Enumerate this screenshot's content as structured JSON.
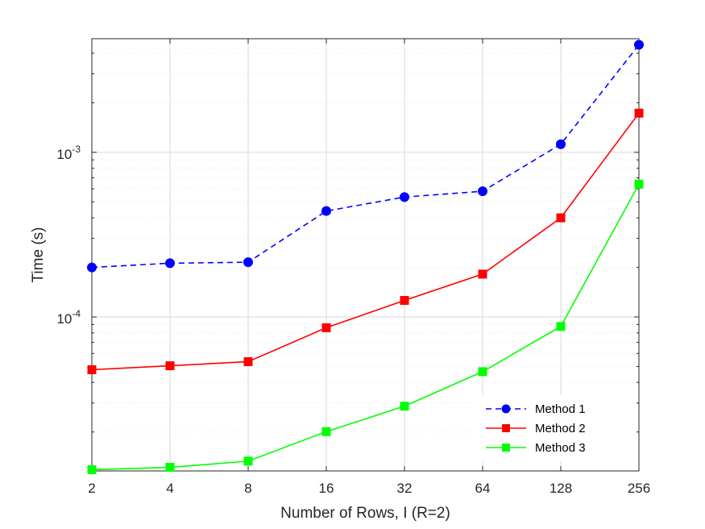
{
  "chart_data": {
    "type": "line",
    "xlabel": "Number of Rows, I (R=2)",
    "ylabel": "Time (s)",
    "x_scale": "log2",
    "y_scale": "log10",
    "x": [
      2,
      4,
      8,
      16,
      32,
      64,
      128,
      256
    ],
    "x_tick_labels": [
      "2",
      "4",
      "8",
      "16",
      "32",
      "64",
      "128",
      "256"
    ],
    "xlim": [
      2,
      256
    ],
    "ylim": [
      1.16e-05,
      0.0049
    ],
    "y_ticks": [
      {
        "value": 0.001,
        "base": "10",
        "exp": "-3"
      },
      {
        "value": 0.0001,
        "base": "10",
        "exp": "-4"
      }
    ],
    "grid": true,
    "legend_position": "bottom-right",
    "series": [
      {
        "name": "Method 1",
        "color": "#0000ff",
        "line_style": "dashed",
        "marker": "circle",
        "values": [
          0.0002,
          0.000212,
          0.000215,
          0.00044,
          0.000535,
          0.00058,
          0.00112,
          0.0045
        ]
      },
      {
        "name": "Method 2",
        "color": "#ff0000",
        "line_style": "solid",
        "marker": "square",
        "values": [
          4.78e-05,
          5.05e-05,
          5.35e-05,
          8.6e-05,
          0.000126,
          0.000182,
          0.0004,
          0.00173
        ]
      },
      {
        "name": "Method 3",
        "color": "#00ff00",
        "line_style": "solid",
        "marker": "square",
        "values": [
          1.18e-05,
          1.22e-05,
          1.33e-05,
          2.01e-05,
          2.87e-05,
          4.65e-05,
          8.75e-05,
          0.00064
        ]
      }
    ]
  }
}
